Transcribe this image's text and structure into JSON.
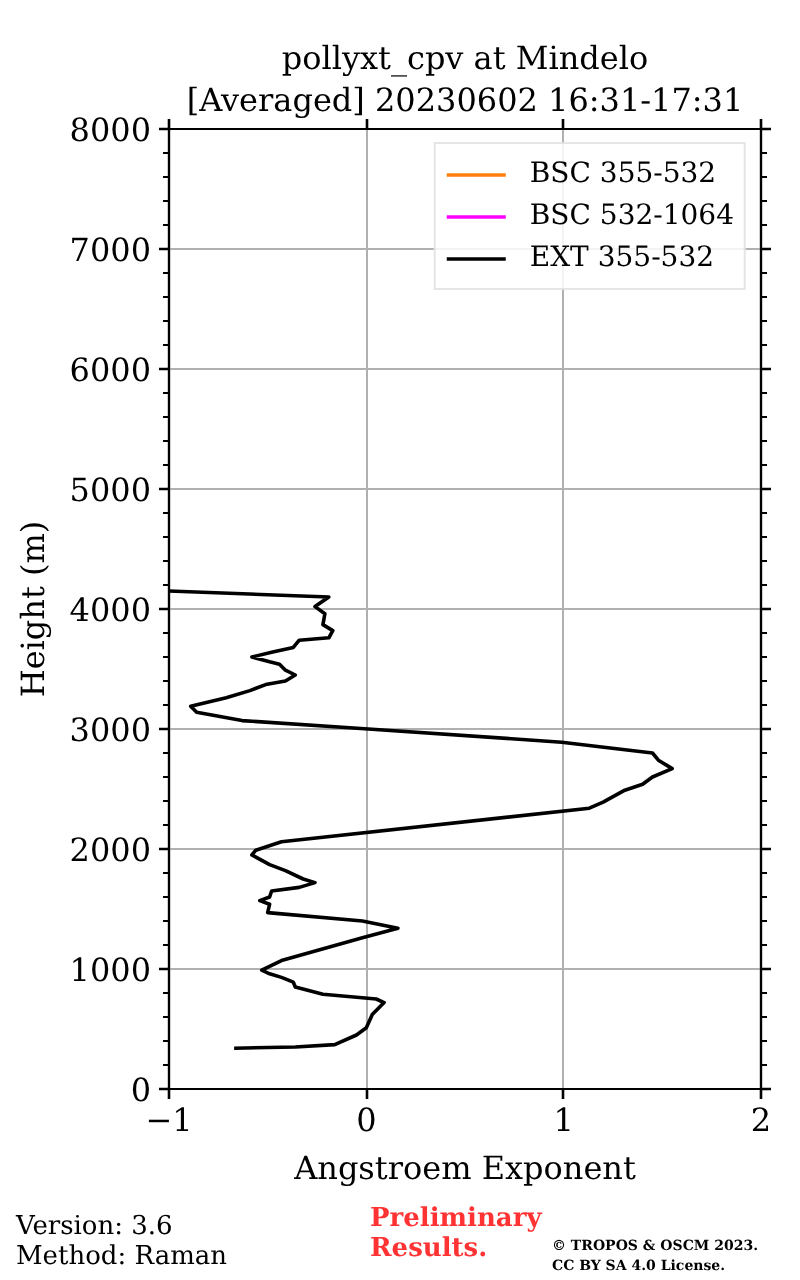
{
  "chart_data": {
    "type": "line",
    "title": "pollyxt_cpv at Mindelo",
    "subtitle": "[Averaged] 20230602 16:31-17:31",
    "xlabel": "Angstroem Exponent",
    "ylabel": "Height (m)",
    "xlim": [
      -1,
      2
    ],
    "xticks": [
      {
        "value": -1,
        "label": "−1"
      },
      0,
      1,
      2
    ],
    "ylim": [
      0,
      8000
    ],
    "yticks": [
      0,
      {
        "value": 200,
        "label": null
      },
      {
        "value": 400,
        "label": null
      },
      {
        "value": 600,
        "label": null
      },
      {
        "value": 800,
        "label": null
      },
      1000,
      {
        "value": 1200,
        "label": null
      },
      {
        "value": 1400,
        "label": null
      },
      {
        "value": 1600,
        "label": null
      },
      {
        "value": 1800,
        "label": null
      },
      2000,
      {
        "value": 2200,
        "label": null
      },
      {
        "value": 2400,
        "label": null
      },
      {
        "value": 2600,
        "label": null
      },
      {
        "value": 2800,
        "label": null
      },
      3000,
      {
        "value": 3200,
        "label": null
      },
      {
        "value": 3400,
        "label": null
      },
      {
        "value": 3600,
        "label": null
      },
      {
        "value": 3800,
        "label": null
      },
      4000,
      {
        "value": 4200,
        "label": null
      },
      {
        "value": 4400,
        "label": null
      },
      {
        "value": 4600,
        "label": null
      },
      {
        "value": 4800,
        "label": null
      },
      5000,
      {
        "value": 5200,
        "label": null
      },
      {
        "value": 5400,
        "label": null
      },
      {
        "value": 5600,
        "label": null
      },
      {
        "value": 5800,
        "label": null
      },
      6000,
      {
        "value": 6200,
        "label": null
      },
      {
        "value": 6400,
        "label": null
      },
      {
        "value": 6600,
        "label": null
      },
      {
        "value": 6800,
        "label": null
      },
      7000,
      {
        "value": 7200,
        "label": null
      },
      {
        "value": 7400,
        "label": null
      },
      {
        "value": 7600,
        "label": null
      },
      {
        "value": 7800,
        "label": null
      },
      8000
    ],
    "grid": true,
    "legend": "top right",
    "series": [
      {
        "name": "BSC 355-532",
        "color": "#ff7f0e"
      },
      {
        "name": "BSC 532-1064",
        "color": "#ff00ff"
      },
      {
        "name": "EXT 355-532",
        "color": "#000000",
        "x": [
          -1.0,
          -0.19,
          -0.26,
          -0.21,
          -0.22,
          -0.17,
          -0.19,
          -0.34,
          -0.37,
          -0.48,
          -0.58,
          -0.49,
          -0.44,
          -0.41,
          -0.36,
          -0.41,
          -0.51,
          -0.59,
          -0.71,
          -0.89,
          -0.86,
          -0.63,
          0.01,
          0.99,
          1.45,
          1.48,
          1.55,
          1.45,
          1.4,
          1.31,
          1.2,
          1.13,
          -0.43,
          -0.56,
          -0.58,
          -0.49,
          -0.41,
          -0.32,
          -0.26,
          -0.34,
          -0.48,
          -0.49,
          -0.54,
          -0.49,
          -0.5,
          -0.02,
          0.16,
          -0.02,
          -0.43,
          -0.53,
          -0.49,
          -0.43,
          -0.37,
          -0.36,
          -0.22,
          0.05,
          0.09,
          0.03,
          0.0,
          -0.05,
          -0.16,
          -0.36,
          -0.67
        ],
        "values": [
          4150,
          4100,
          4020,
          3960,
          3870,
          3820,
          3760,
          3740,
          3680,
          3640,
          3600,
          3560,
          3540,
          3490,
          3450,
          3400,
          3370,
          3320,
          3260,
          3190,
          3140,
          3070,
          3000,
          2890,
          2800,
          2740,
          2670,
          2600,
          2540,
          2490,
          2390,
          2340,
          2060,
          1990,
          1950,
          1870,
          1820,
          1750,
          1720,
          1680,
          1650,
          1600,
          1570,
          1540,
          1470,
          1400,
          1340,
          1260,
          1070,
          990,
          960,
          930,
          890,
          850,
          790,
          750,
          720,
          620,
          510,
          450,
          370,
          350,
          340
        ]
      }
    ],
    "annotations": [
      "Version: 3.6",
      "Method: Raman",
      "Preliminary",
      "Results.",
      "© TROPOS & OSCM 2023.",
      "CC BY SA 4.0 License."
    ]
  }
}
